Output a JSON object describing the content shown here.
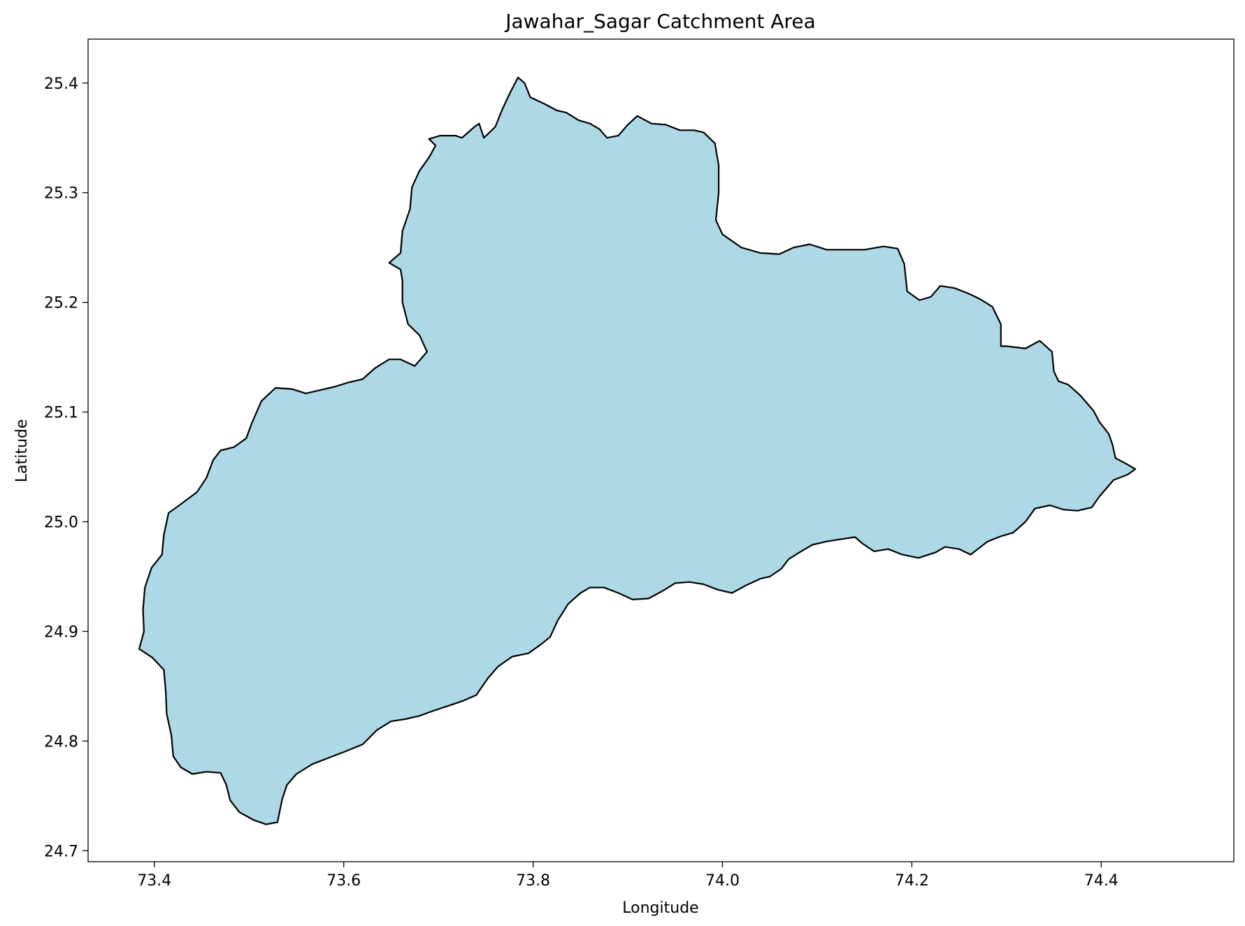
{
  "chart_data": {
    "type": "map",
    "title": "Jawahar_Sagar Catchment Area",
    "xlabel": "Longitude",
    "ylabel": "Latitude",
    "xlim": [
      73.33,
      74.54
    ],
    "ylim": [
      24.69,
      25.44
    ],
    "xticks": [
      73.4,
      73.6,
      73.8,
      74.0,
      74.2,
      74.4
    ],
    "xtick_labels": [
      "73.4",
      "73.6",
      "73.8",
      "74.0",
      "74.2",
      "74.4"
    ],
    "yticks": [
      24.7,
      24.8,
      24.9,
      25.0,
      25.1,
      25.2,
      25.3,
      25.4
    ],
    "ytick_labels": [
      "24.7",
      "24.8",
      "24.9",
      "25.0",
      "25.1",
      "25.2",
      "25.3",
      "25.4"
    ],
    "grid": false,
    "fill_color": "#add8e6",
    "edge_color": "#000000",
    "boundary": [
      [
        73.784,
        25.405
      ],
      [
        73.791,
        25.4
      ],
      [
        73.797,
        25.387
      ],
      [
        73.812,
        25.381
      ],
      [
        73.825,
        25.375
      ],
      [
        73.835,
        25.373
      ],
      [
        73.848,
        25.366
      ],
      [
        73.86,
        25.363
      ],
      [
        73.87,
        25.358
      ],
      [
        73.878,
        25.35
      ],
      [
        73.89,
        25.352
      ],
      [
        73.9,
        25.362
      ],
      [
        73.91,
        25.37
      ],
      [
        73.925,
        25.363
      ],
      [
        73.94,
        25.362
      ],
      [
        73.955,
        25.357
      ],
      [
        73.97,
        25.357
      ],
      [
        73.98,
        25.355
      ],
      [
        73.992,
        25.345
      ],
      [
        73.996,
        25.325
      ],
      [
        73.996,
        25.3
      ],
      [
        73.993,
        25.275
      ],
      [
        74.0,
        25.262
      ],
      [
        74.02,
        25.25
      ],
      [
        74.04,
        25.245
      ],
      [
        74.06,
        25.244
      ],
      [
        74.075,
        25.25
      ],
      [
        74.092,
        25.253
      ],
      [
        74.11,
        25.248
      ],
      [
        74.13,
        25.248
      ],
      [
        74.15,
        25.248
      ],
      [
        74.17,
        25.251
      ],
      [
        74.185,
        25.249
      ],
      [
        74.192,
        25.235
      ],
      [
        74.195,
        25.21
      ],
      [
        74.208,
        25.202
      ],
      [
        74.22,
        25.205
      ],
      [
        74.23,
        25.215
      ],
      [
        74.245,
        25.213
      ],
      [
        74.26,
        25.208
      ],
      [
        74.272,
        25.203
      ],
      [
        74.285,
        25.196
      ],
      [
        74.294,
        25.18
      ],
      [
        74.294,
        25.16
      ],
      [
        74.3,
        25.16
      ],
      [
        74.32,
        25.158
      ],
      [
        74.335,
        25.165
      ],
      [
        74.348,
        25.155
      ],
      [
        74.35,
        25.137
      ],
      [
        74.355,
        25.128
      ],
      [
        74.365,
        25.125
      ],
      [
        74.378,
        25.115
      ],
      [
        74.392,
        25.101
      ],
      [
        74.398,
        25.091
      ],
      [
        74.408,
        25.08
      ],
      [
        74.412,
        25.07
      ],
      [
        74.415,
        25.058
      ],
      [
        74.426,
        25.053
      ],
      [
        74.436,
        25.048
      ],
      [
        74.428,
        25.043
      ],
      [
        74.413,
        25.038
      ],
      [
        74.398,
        25.023
      ],
      [
        74.39,
        25.013
      ],
      [
        74.375,
        25.01
      ],
      [
        74.36,
        25.011
      ],
      [
        74.346,
        25.015
      ],
      [
        74.33,
        25.012
      ],
      [
        74.32,
        25.0
      ],
      [
        74.307,
        24.99
      ],
      [
        74.295,
        24.987
      ],
      [
        74.28,
        24.982
      ],
      [
        74.262,
        24.97
      ],
      [
        74.25,
        24.975
      ],
      [
        74.235,
        24.977
      ],
      [
        74.225,
        24.972
      ],
      [
        74.207,
        24.967
      ],
      [
        74.19,
        24.97
      ],
      [
        74.175,
        24.975
      ],
      [
        74.16,
        24.973
      ],
      [
        74.148,
        24.98
      ],
      [
        74.14,
        24.986
      ],
      [
        74.125,
        24.984
      ],
      [
        74.11,
        24.982
      ],
      [
        74.095,
        24.979
      ],
      [
        74.085,
        24.974
      ],
      [
        74.07,
        24.966
      ],
      [
        74.062,
        24.957
      ],
      [
        74.05,
        24.95
      ],
      [
        74.04,
        24.948
      ],
      [
        74.025,
        24.942
      ],
      [
        74.01,
        24.935
      ],
      [
        73.995,
        24.938
      ],
      [
        73.98,
        24.943
      ],
      [
        73.965,
        24.945
      ],
      [
        73.95,
        24.944
      ],
      [
        73.937,
        24.937
      ],
      [
        73.922,
        24.93
      ],
      [
        73.905,
        24.929
      ],
      [
        73.89,
        24.935
      ],
      [
        73.875,
        24.94
      ],
      [
        73.86,
        24.94
      ],
      [
        73.85,
        24.935
      ],
      [
        73.837,
        24.925
      ],
      [
        73.826,
        24.91
      ],
      [
        73.818,
        24.895
      ],
      [
        73.808,
        24.888
      ],
      [
        73.795,
        24.88
      ],
      [
        73.778,
        24.877
      ],
      [
        73.763,
        24.868
      ],
      [
        73.752,
        24.857
      ],
      [
        73.74,
        24.842
      ],
      [
        73.727,
        24.837
      ],
      [
        73.71,
        24.832
      ],
      [
        73.696,
        24.828
      ],
      [
        73.68,
        24.823
      ],
      [
        73.665,
        24.82
      ],
      [
        73.65,
        24.818
      ],
      [
        73.635,
        24.81
      ],
      [
        73.62,
        24.797
      ],
      [
        73.6,
        24.79
      ],
      [
        73.585,
        24.785
      ],
      [
        73.567,
        24.779
      ],
      [
        73.55,
        24.77
      ],
      [
        73.54,
        24.76
      ],
      [
        73.535,
        24.747
      ],
      [
        73.53,
        24.726
      ],
      [
        73.518,
        24.724
      ],
      [
        73.505,
        24.728
      ],
      [
        73.49,
        24.735
      ],
      [
        73.48,
        24.746
      ],
      [
        73.476,
        24.76
      ],
      [
        73.47,
        24.771
      ],
      [
        73.455,
        24.772
      ],
      [
        73.44,
        24.77
      ],
      [
        73.428,
        24.776
      ],
      [
        73.42,
        24.786
      ],
      [
        73.418,
        24.805
      ],
      [
        73.413,
        24.825
      ],
      [
        73.412,
        24.845
      ],
      [
        73.41,
        24.865
      ],
      [
        73.398,
        24.876
      ],
      [
        73.384,
        24.884
      ],
      [
        73.389,
        24.9
      ],
      [
        73.388,
        24.92
      ],
      [
        73.39,
        24.94
      ],
      [
        73.397,
        24.958
      ],
      [
        73.408,
        24.97
      ],
      [
        73.41,
        24.988
      ],
      [
        73.415,
        25.008
      ],
      [
        73.428,
        25.016
      ],
      [
        73.445,
        25.027
      ],
      [
        73.455,
        25.04
      ],
      [
        73.462,
        25.056
      ],
      [
        73.47,
        25.065
      ],
      [
        73.484,
        25.068
      ],
      [
        73.497,
        25.076
      ],
      [
        73.503,
        25.09
      ],
      [
        73.513,
        25.11
      ],
      [
        73.528,
        25.122
      ],
      [
        73.545,
        25.121
      ],
      [
        73.56,
        25.117
      ],
      [
        73.575,
        25.12
      ],
      [
        73.59,
        25.123
      ],
      [
        73.605,
        25.127
      ],
      [
        73.62,
        25.13
      ],
      [
        73.633,
        25.14
      ],
      [
        73.648,
        25.148
      ],
      [
        73.66,
        25.148
      ],
      [
        73.675,
        25.142
      ],
      [
        73.683,
        25.15
      ],
      [
        73.688,
        25.155
      ],
      [
        73.68,
        25.17
      ],
      [
        73.668,
        25.18
      ],
      [
        73.662,
        25.2
      ],
      [
        73.662,
        25.22
      ],
      [
        73.66,
        25.23
      ],
      [
        73.648,
        25.236
      ],
      [
        73.66,
        25.245
      ],
      [
        73.662,
        25.265
      ],
      [
        73.67,
        25.285
      ],
      [
        73.672,
        25.305
      ],
      [
        73.68,
        25.32
      ],
      [
        73.69,
        25.332
      ],
      [
        73.697,
        25.343
      ],
      [
        73.69,
        25.349
      ],
      [
        73.702,
        25.352
      ],
      [
        73.718,
        25.352
      ],
      [
        73.725,
        25.35
      ],
      [
        73.738,
        25.36
      ],
      [
        73.743,
        25.363
      ],
      [
        73.748,
        25.35
      ],
      [
        73.76,
        25.36
      ],
      [
        73.767,
        25.375
      ],
      [
        73.775,
        25.39
      ]
    ]
  }
}
